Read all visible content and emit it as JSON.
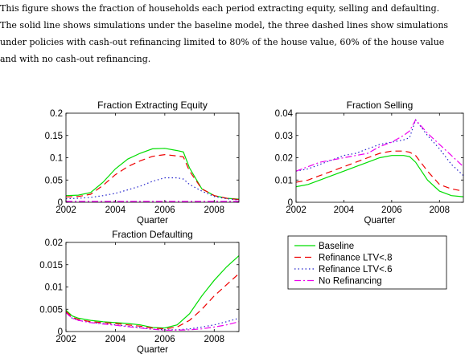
{
  "caption": [
    "This figure shows the fraction of households each period extracting equity, selling and defaulting.",
    "The solid line shows simulations under the baseline model, the three dashed lines show simulations",
    "under policies with cash-out refinancing limited to 80% of the house value, 60% of the house value",
    "and with no cash-out refinancing."
  ],
  "series_style": [
    {
      "color": "#00dd00",
      "dash": ""
    },
    {
      "color": "#ee0000",
      "dash": "8,5"
    },
    {
      "color": "#2222cc",
      "dash": "1.5,3"
    },
    {
      "color": "#ee00ee",
      "dash": "8,3,2,3"
    }
  ],
  "legend": {
    "entries": [
      "Baseline",
      "Refinance LTV<.8",
      "Refinance LTV<.6",
      "No Refinancing"
    ]
  },
  "chart_data": [
    {
      "type": "line",
      "title": "Fraction Extracting Equity",
      "xlabel": "Quarter",
      "ylabel": "",
      "xlim": [
        2002,
        2009
      ],
      "ylim": [
        0,
        0.2
      ],
      "xticks": [
        2002,
        2004,
        2006,
        2008
      ],
      "xtick_labels": [
        "2002",
        "2004",
        "2006",
        "2008"
      ],
      "yticks": [
        0,
        0.05,
        0.1,
        0.15,
        0.2
      ],
      "ytick_labels": [
        "0",
        "0.05",
        "0.1",
        "0.15",
        "0.2"
      ],
      "x": [
        2002.0,
        2002.5,
        2003.0,
        2003.5,
        2004.0,
        2004.5,
        2005.0,
        2005.5,
        2006.0,
        2006.5,
        2006.75,
        2007.0,
        2007.5,
        2008.0,
        2008.5,
        2009.0
      ],
      "series": [
        {
          "name": "Baseline",
          "values": [
            0.015,
            0.016,
            0.022,
            0.045,
            0.075,
            0.097,
            0.11,
            0.12,
            0.121,
            0.116,
            0.113,
            0.077,
            0.03,
            0.015,
            0.009,
            0.007
          ]
        },
        {
          "name": "Refinance LTV<.8",
          "values": [
            0.012,
            0.013,
            0.018,
            0.038,
            0.062,
            0.08,
            0.093,
            0.103,
            0.107,
            0.104,
            0.102,
            0.07,
            0.03,
            0.015,
            0.009,
            0.006
          ]
        },
        {
          "name": "Refinance LTV<.6",
          "values": [
            0.008,
            0.009,
            0.011,
            0.015,
            0.02,
            0.028,
            0.036,
            0.047,
            0.055,
            0.055,
            0.052,
            0.04,
            0.025,
            0.013,
            0.008,
            0.005
          ]
        },
        {
          "name": "No Refinancing",
          "values": [
            0.002,
            0.002,
            0.002,
            0.002,
            0.002,
            0.002,
            0.002,
            0.002,
            0.002,
            0.002,
            0.002,
            0.002,
            0.002,
            0.002,
            0.002,
            0.002
          ]
        }
      ]
    },
    {
      "type": "line",
      "title": "Fraction Selling",
      "xlabel": "Quarter",
      "ylabel": "",
      "xlim": [
        2002,
        2009
      ],
      "ylim": [
        0,
        0.04
      ],
      "xticks": [
        2002,
        2004,
        2006,
        2008
      ],
      "xtick_labels": [
        "2002",
        "2004",
        "2006",
        "2008"
      ],
      "yticks": [
        0,
        0.01,
        0.02,
        0.03,
        0.04
      ],
      "ytick_labels": [
        "0",
        "0.01",
        "0.02",
        "0.03",
        "0.04"
      ],
      "x": [
        2002.0,
        2002.5,
        2003.0,
        2003.5,
        2004.0,
        2004.5,
        2005.0,
        2005.5,
        2006.0,
        2006.5,
        2006.75,
        2007.0,
        2007.5,
        2008.0,
        2008.5,
        2009.0
      ],
      "series": [
        {
          "name": "Baseline",
          "values": [
            0.007,
            0.008,
            0.01,
            0.012,
            0.014,
            0.016,
            0.018,
            0.02,
            0.021,
            0.021,
            0.0205,
            0.018,
            0.01,
            0.005,
            0.003,
            0.0025
          ]
        },
        {
          "name": "Refinance LTV<.8",
          "values": [
            0.009,
            0.01,
            0.012,
            0.014,
            0.016,
            0.018,
            0.02,
            0.022,
            0.023,
            0.023,
            0.0225,
            0.021,
            0.014,
            0.008,
            0.006,
            0.005
          ]
        },
        {
          "name": "Refinance LTV<.6",
          "values": [
            0.014,
            0.015,
            0.017,
            0.019,
            0.021,
            0.022,
            0.024,
            0.026,
            0.027,
            0.028,
            0.029,
            0.037,
            0.03,
            0.024,
            0.017,
            0.012
          ]
        },
        {
          "name": "No Refinancing",
          "values": [
            0.014,
            0.016,
            0.018,
            0.019,
            0.02,
            0.021,
            0.022,
            0.025,
            0.027,
            0.03,
            0.032,
            0.037,
            0.031,
            0.026,
            0.021,
            0.016
          ]
        }
      ]
    },
    {
      "type": "line",
      "title": "Fraction Defaulting",
      "xlabel": "Quarter",
      "ylabel": "",
      "xlim": [
        2002,
        2009
      ],
      "ylim": [
        0,
        0.02
      ],
      "xticks": [
        2002,
        2004,
        2006,
        2008
      ],
      "xtick_labels": [
        "2002",
        "2004",
        "2006",
        "2008"
      ],
      "yticks": [
        0,
        0.005,
        0.01,
        0.015,
        0.02
      ],
      "ytick_labels": [
        "0",
        "0.005",
        "0.01",
        "0.015",
        "0.02"
      ],
      "x": [
        2002.0,
        2002.25,
        2002.5,
        2003.0,
        2003.5,
        2004.0,
        2004.5,
        2005.0,
        2005.5,
        2006.0,
        2006.5,
        2007.0,
        2007.5,
        2008.0,
        2008.5,
        2009.0
      ],
      "series": [
        {
          "name": "Baseline",
          "values": [
            0.0048,
            0.0035,
            0.003,
            0.0025,
            0.0022,
            0.002,
            0.0018,
            0.0015,
            0.0009,
            0.0008,
            0.0015,
            0.004,
            0.008,
            0.0115,
            0.0145,
            0.017
          ]
        },
        {
          "name": "Refinance LTV<.8",
          "values": [
            0.0045,
            0.0032,
            0.0027,
            0.0022,
            0.002,
            0.0018,
            0.0015,
            0.0012,
            0.0008,
            0.0006,
            0.001,
            0.0025,
            0.005,
            0.008,
            0.0105,
            0.013
          ]
        },
        {
          "name": "Refinance LTV<.6",
          "values": [
            0.0042,
            0.003,
            0.0025,
            0.002,
            0.0018,
            0.0015,
            0.0012,
            0.0009,
            0.0005,
            0.0004,
            0.0004,
            0.0006,
            0.001,
            0.0015,
            0.0022,
            0.003
          ]
        },
        {
          "name": "No Refinancing",
          "values": [
            0.0042,
            0.003,
            0.0025,
            0.002,
            0.0017,
            0.0014,
            0.0011,
            0.0008,
            0.0005,
            0.0003,
            0.0003,
            0.0004,
            0.0006,
            0.001,
            0.0015,
            0.0022
          ]
        }
      ]
    }
  ]
}
